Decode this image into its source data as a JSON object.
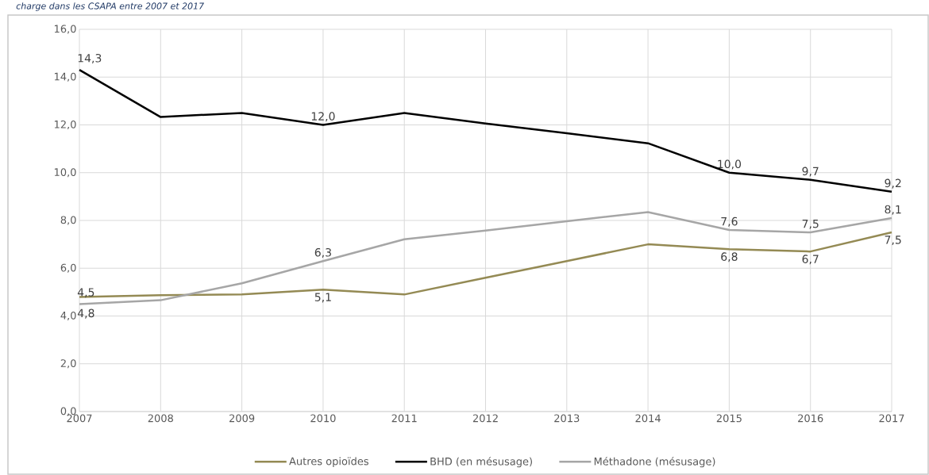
{
  "chart_data": {
    "type": "line",
    "title": "charge dans les CSAPA entre 2007 et 2017",
    "categories": [
      "2007",
      "2008",
      "2009",
      "2010",
      "2011",
      "2012",
      "2013",
      "2014",
      "2015",
      "2016",
      "2017"
    ],
    "series": [
      {
        "name": "Autres opioïdes",
        "color": "#948a54",
        "values": [
          4.8,
          4.87,
          4.9,
          5.1,
          4.9,
          5.6,
          6.3,
          7.0,
          6.8,
          6.7,
          7.5
        ],
        "value_labels": [
          "4,8",
          null,
          null,
          "5,1",
          null,
          null,
          null,
          null,
          "6,8",
          "6,7",
          "7,5"
        ]
      },
      {
        "name": "BHD (en mésusage)",
        "color": "#000000",
        "values": [
          14.3,
          12.33,
          12.5,
          12.0,
          12.5,
          12.06,
          11.65,
          11.23,
          10.0,
          9.7,
          9.2
        ],
        "value_labels": [
          "14,3",
          null,
          null,
          "12,0",
          null,
          null,
          null,
          null,
          "10,0",
          "9,7",
          "9,2"
        ]
      },
      {
        "name": "Méthadone (mésusage)",
        "color": "#a6a6a6",
        "values": [
          4.5,
          4.66,
          5.37,
          6.3,
          7.21,
          7.58,
          7.97,
          8.35,
          7.6,
          7.5,
          8.1
        ],
        "value_labels": [
          "4,5",
          null,
          null,
          "6,3",
          null,
          null,
          null,
          null,
          "7,6",
          "7,5",
          "8,1"
        ]
      }
    ],
    "ylim": [
      0,
      16
    ],
    "yticks": [
      {
        "value": 0,
        "label": "0,0"
      },
      {
        "value": 2,
        "label": "2,0"
      },
      {
        "value": 4,
        "label": "4,0"
      },
      {
        "value": 6,
        "label": "6,0"
      },
      {
        "value": 8,
        "label": "8,0"
      },
      {
        "value": 10,
        "label": "10,0"
      },
      {
        "value": 12,
        "label": "12,0"
      },
      {
        "value": 14,
        "label": "14,0"
      },
      {
        "value": 16,
        "label": "16,0"
      }
    ],
    "grid": true,
    "legend": "bottom",
    "marker": "none",
    "line_style": "solid"
  }
}
